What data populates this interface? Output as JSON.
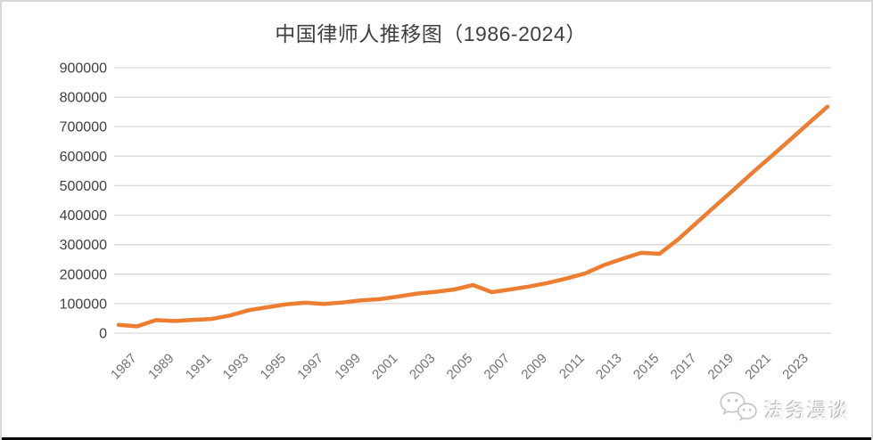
{
  "page": {
    "background": "#FFFFFF",
    "frame_border_color": "#D8D8D8",
    "bottom_bar_color": "#000000"
  },
  "chart": {
    "title_color": "#3F3F3F",
    "line_color": "#ED7D31",
    "grid_color": "#D9D9D9",
    "y_label_color": "#404040",
    "x_label_color": "#737373"
  },
  "chart_data": {
    "type": "line",
    "title": "中国律师人推移图（1986-2024）",
    "xlabel": "",
    "ylabel": "",
    "x": [
      1986,
      1987,
      1988,
      1989,
      1990,
      1991,
      1992,
      1993,
      1994,
      1995,
      1996,
      1997,
      1998,
      1999,
      2000,
      2001,
      2002,
      2003,
      2004,
      2005,
      2006,
      2007,
      2008,
      2009,
      2010,
      2011,
      2012,
      2013,
      2014,
      2015,
      2016,
      2017,
      2018,
      2019,
      2020,
      2021,
      2022,
      2023,
      2024
    ],
    "values": [
      28000,
      23000,
      44000,
      41000,
      45000,
      48000,
      60000,
      78000,
      88000,
      98000,
      103000,
      99000,
      104000,
      111000,
      115000,
      124000,
      134000,
      140000,
      148000,
      163000,
      139000,
      148000,
      158000,
      170000,
      185000,
      202000,
      230000,
      252000,
      272000,
      269000,
      318000,
      375000,
      432000,
      488000,
      545000,
      600000,
      656000,
      712000,
      768000
    ],
    "ylim": [
      0,
      900000
    ],
    "yticks": [
      0,
      100000,
      200000,
      300000,
      400000,
      500000,
      600000,
      700000,
      800000,
      900000
    ],
    "xticks": [
      1987,
      1989,
      1991,
      1993,
      1995,
      1997,
      1999,
      2001,
      2003,
      2005,
      2007,
      2009,
      2011,
      2013,
      2015,
      2017,
      2019,
      2021,
      2023
    ],
    "grid": "horizontal",
    "legend_position": "none",
    "markers": "none"
  },
  "watermark": {
    "text": "法务漫谈",
    "icon": "wechat-icon"
  }
}
